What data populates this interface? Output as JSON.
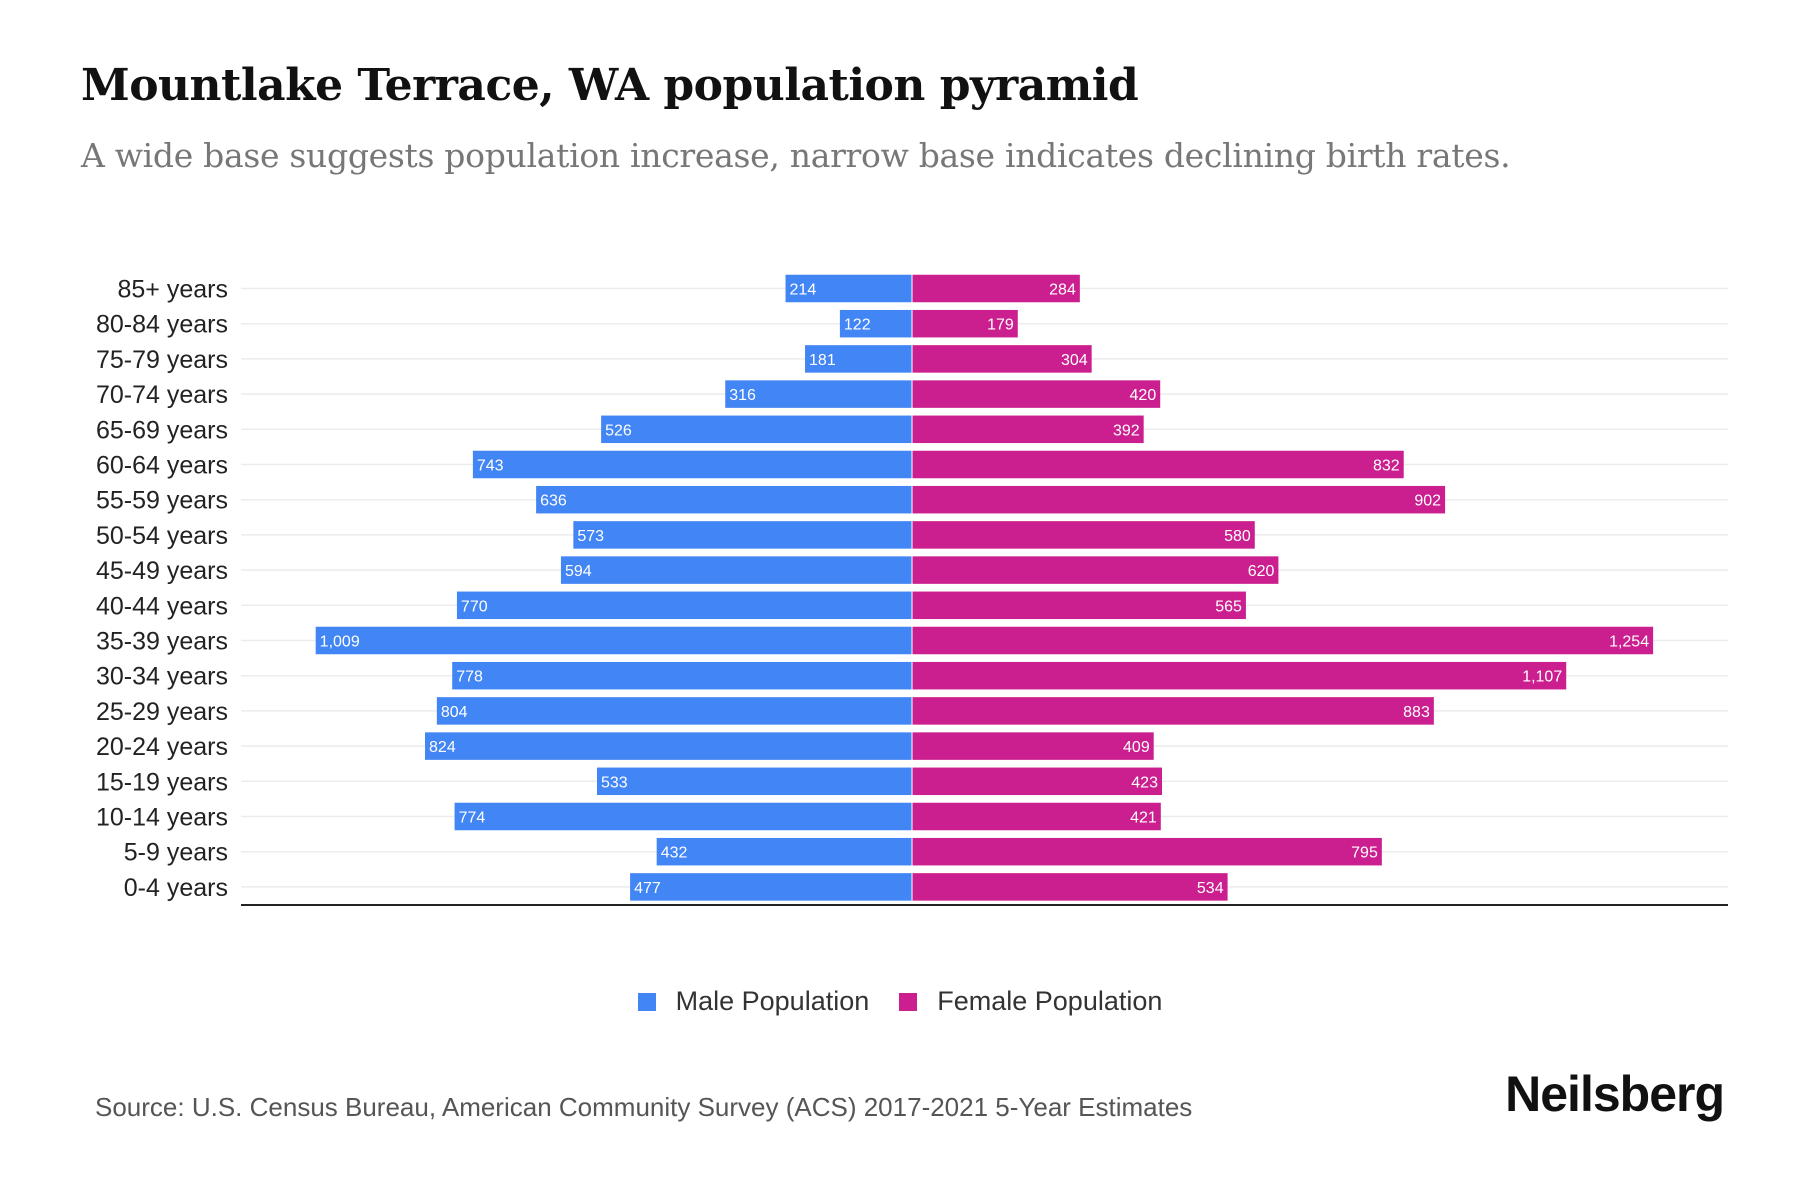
{
  "title": "Mountlake Terrace, WA population pyramid",
  "subtitle": "A wide base suggests population increase, narrow base indicates declining birth rates.",
  "source": "Source: U.S. Census Bureau, American Community Survey (ACS) 2017-2021 5-Year Estimates",
  "logo": "Neilsberg",
  "chart_data": {
    "type": "bar",
    "orientation": "horizontal-pyramid",
    "title": "Mountlake Terrace, WA population pyramid",
    "categories": [
      "85+ years",
      "80-84 years",
      "75-79 years",
      "70-74 years",
      "65-69 years",
      "60-64 years",
      "55-59 years",
      "50-54 years",
      "45-49 years",
      "40-44 years",
      "35-39 years",
      "30-34 years",
      "25-29 years",
      "20-24 years",
      "15-19 years",
      "10-14 years",
      "5-9 years",
      "0-4 years"
    ],
    "series": [
      {
        "name": "Male Population",
        "color": "#4285F4",
        "values": [
          214,
          122,
          181,
          316,
          526,
          743,
          636,
          573,
          594,
          770,
          1009,
          778,
          804,
          824,
          533,
          774,
          432,
          477
        ],
        "labels": [
          "214",
          "122",
          "181",
          "316",
          "526",
          "743",
          "636",
          "573",
          "594",
          "770",
          "1,009",
          "778",
          "804",
          "824",
          "533",
          "774",
          "432",
          "477"
        ]
      },
      {
        "name": "Female Population",
        "color": "#CC1F8F",
        "values": [
          284,
          179,
          304,
          420,
          392,
          832,
          902,
          580,
          620,
          565,
          1254,
          1107,
          883,
          409,
          423,
          421,
          795,
          534
        ],
        "labels": [
          "284",
          "179",
          "304",
          "420",
          "392",
          "832",
          "902",
          "580",
          "620",
          "565",
          "1,254",
          "1,107",
          "883",
          "409",
          "423",
          "421",
          "795",
          "534"
        ]
      }
    ],
    "legend": "bottom-center",
    "grid": true
  }
}
